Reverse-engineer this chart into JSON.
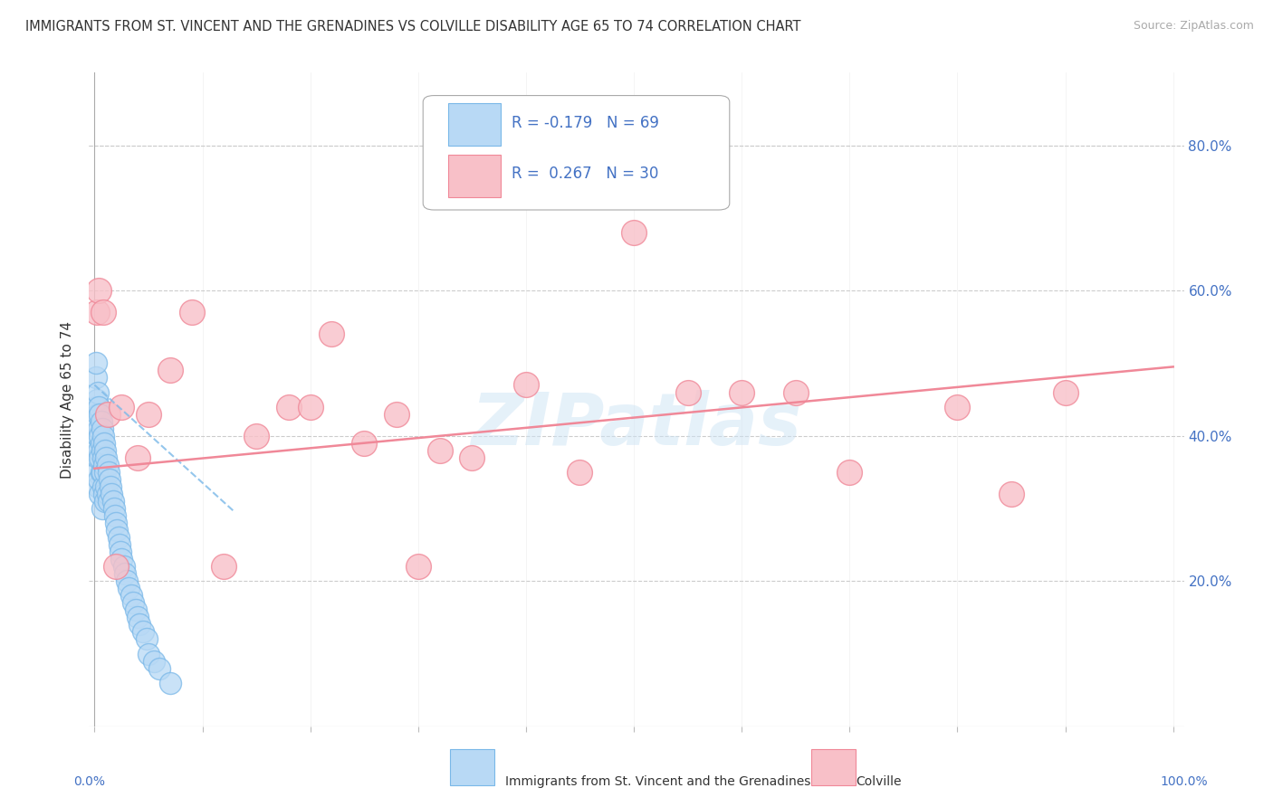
{
  "title": "IMMIGRANTS FROM ST. VINCENT AND THE GRENADINES VS COLVILLE DISABILITY AGE 65 TO 74 CORRELATION CHART",
  "source": "Source: ZipAtlas.com",
  "ylabel": "Disability Age 65 to 74",
  "title_fontsize": 10.5,
  "source_fontsize": 9,
  "ylabel_fontsize": 11,
  "xlim": [
    -0.005,
    1.01
  ],
  "ylim": [
    0.0,
    0.9
  ],
  "yticks": [
    0.2,
    0.4,
    0.6,
    0.8
  ],
  "ytick_labels_right": [
    "20.0%",
    "40.0%",
    "60.0%",
    "80.0%"
  ],
  "background_color": "#ffffff",
  "grid_color": "#cccccc",
  "watermark": "ZIPatlas",
  "blue_color": "#7ab8e8",
  "blue_face": "#b8d9f5",
  "pink_color": "#f08898",
  "pink_face": "#f8c0c8",
  "blue_scatter_x": [
    0.001,
    0.001,
    0.001,
    0.0015,
    0.002,
    0.002,
    0.002,
    0.003,
    0.003,
    0.003,
    0.003,
    0.003,
    0.004,
    0.004,
    0.004,
    0.004,
    0.005,
    0.005,
    0.005,
    0.005,
    0.006,
    0.006,
    0.006,
    0.007,
    0.007,
    0.007,
    0.007,
    0.008,
    0.008,
    0.008,
    0.009,
    0.009,
    0.009,
    0.01,
    0.01,
    0.01,
    0.011,
    0.011,
    0.012,
    0.012,
    0.013,
    0.013,
    0.014,
    0.015,
    0.016,
    0.017,
    0.018,
    0.019,
    0.02,
    0.021,
    0.022,
    0.023,
    0.024,
    0.025,
    0.027,
    0.028,
    0.03,
    0.032,
    0.034,
    0.036,
    0.038,
    0.04,
    0.042,
    0.045,
    0.048,
    0.05,
    0.055,
    0.06,
    0.07
  ],
  "blue_scatter_y": [
    0.48,
    0.44,
    0.38,
    0.5,
    0.45,
    0.42,
    0.35,
    0.46,
    0.43,
    0.4,
    0.37,
    0.33,
    0.44,
    0.41,
    0.38,
    0.34,
    0.43,
    0.4,
    0.37,
    0.32,
    0.42,
    0.39,
    0.35,
    0.41,
    0.38,
    0.35,
    0.3,
    0.4,
    0.37,
    0.33,
    0.39,
    0.36,
    0.32,
    0.38,
    0.35,
    0.31,
    0.37,
    0.33,
    0.36,
    0.32,
    0.35,
    0.31,
    0.34,
    0.33,
    0.32,
    0.31,
    0.3,
    0.29,
    0.28,
    0.27,
    0.26,
    0.25,
    0.24,
    0.23,
    0.22,
    0.21,
    0.2,
    0.19,
    0.18,
    0.17,
    0.16,
    0.15,
    0.14,
    0.13,
    0.12,
    0.1,
    0.09,
    0.08,
    0.06
  ],
  "pink_scatter_x": [
    0.002,
    0.004,
    0.008,
    0.012,
    0.02,
    0.025,
    0.04,
    0.05,
    0.07,
    0.09,
    0.12,
    0.15,
    0.18,
    0.2,
    0.22,
    0.25,
    0.28,
    0.3,
    0.32,
    0.35,
    0.4,
    0.45,
    0.5,
    0.55,
    0.6,
    0.65,
    0.7,
    0.8,
    0.85,
    0.9
  ],
  "pink_scatter_y": [
    0.57,
    0.6,
    0.57,
    0.43,
    0.22,
    0.44,
    0.37,
    0.43,
    0.49,
    0.57,
    0.22,
    0.4,
    0.44,
    0.44,
    0.54,
    0.39,
    0.43,
    0.22,
    0.38,
    0.37,
    0.47,
    0.35,
    0.68,
    0.46,
    0.46,
    0.46,
    0.35,
    0.44,
    0.32,
    0.46
  ],
  "blue_trend_x": [
    0.0,
    0.13
  ],
  "blue_trend_y": [
    0.47,
    0.295
  ],
  "pink_trend_x": [
    0.0,
    1.0
  ],
  "pink_trend_y": [
    0.355,
    0.495
  ]
}
